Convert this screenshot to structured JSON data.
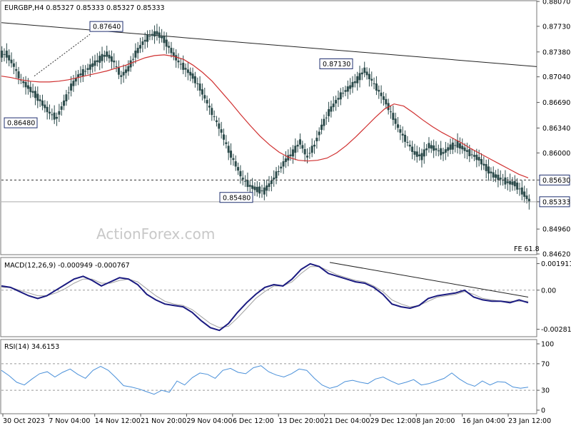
{
  "chart_data": [
    {
      "type": "candlestick",
      "header": "EURGBP,H4  0.85327 0.85333 0.85327 0.85333",
      "price_scale": {
        "ticks": [
          "0.88070",
          "0.87730",
          "0.87380",
          "0.87040",
          "0.86690",
          "0.86340",
          "0.86000",
          "0.85630",
          "0.85333",
          "0.84960",
          "0.84620"
        ],
        "ylim": [
          0.8462,
          0.8807
        ],
        "current_price": "0.85333",
        "highlighted_level": "0.85630"
      },
      "annotations": [
        {
          "text": "0.87640",
          "price": 0.8764
        },
        {
          "text": "0.86480",
          "price": 0.8648
        },
        {
          "text": "0.85480",
          "price": 0.8548
        },
        {
          "text": "0.87130",
          "price": 0.8713
        }
      ],
      "fe_label": "FE 61.8",
      "watermark": "ActionForex.com",
      "series": [
        {
          "name": "price",
          "values": [
            0.8735,
            0.872,
            0.87,
            0.869,
            0.868,
            0.8668,
            0.8655,
            0.8648,
            0.8668,
            0.869,
            0.8705,
            0.8712,
            0.872,
            0.8728,
            0.8735,
            0.8725,
            0.8705,
            0.8715,
            0.8735,
            0.875,
            0.876,
            0.8764,
            0.8755,
            0.874,
            0.8725,
            0.8715,
            0.8705,
            0.869,
            0.867,
            0.865,
            0.863,
            0.8605,
            0.8585,
            0.8565,
            0.8555,
            0.855,
            0.8548,
            0.856,
            0.8575,
            0.859,
            0.86,
            0.8615,
            0.8595,
            0.861,
            0.8635,
            0.8655,
            0.867,
            0.8682,
            0.869,
            0.87,
            0.8713,
            0.87,
            0.8685,
            0.867,
            0.865,
            0.863,
            0.8615,
            0.86,
            0.8595,
            0.861,
            0.8605,
            0.86,
            0.8608,
            0.8612,
            0.8605,
            0.8598,
            0.8592,
            0.858,
            0.857,
            0.8565,
            0.856,
            0.8558,
            0.8548,
            0.8535
          ]
        },
        {
          "name": "moving_average",
          "values": [
            0.8705,
            0.8703,
            0.87,
            0.8698,
            0.8697,
            0.8697,
            0.8698,
            0.87,
            0.8703,
            0.8706,
            0.8709,
            0.8712,
            0.8716,
            0.872,
            0.8725,
            0.873,
            0.8733,
            0.8734,
            0.8732,
            0.8728,
            0.872,
            0.871,
            0.8698,
            0.8683,
            0.8668,
            0.8652,
            0.8637,
            0.8623,
            0.8611,
            0.8601,
            0.8594,
            0.859,
            0.8589,
            0.859,
            0.8593,
            0.86,
            0.861,
            0.8622,
            0.8635,
            0.8648,
            0.866,
            0.8667,
            0.8664,
            0.8655,
            0.8645,
            0.8636,
            0.8628,
            0.8621,
            0.8614,
            0.8606,
            0.8599,
            0.8592,
            0.8585,
            0.8578,
            0.8571,
            0.8566
          ]
        }
      ],
      "trendline": {
        "start": 0.8778,
        "end": 0.8718
      }
    },
    {
      "type": "line",
      "header": "MACD(12,26,9) -0.000949 -0.000767",
      "ticks": [
        "0.001911",
        "0.00",
        "-0.002816"
      ],
      "ylim": [
        -0.0033,
        0.0023
      ],
      "series": [
        {
          "name": "macd",
          "values": [
            0.0003,
            0.0002,
            -0.0001,
            -0.0004,
            -0.0006,
            -0.0004,
            0.0,
            0.0004,
            0.0008,
            0.001,
            0.0007,
            0.0003,
            0.0006,
            0.0009,
            0.0008,
            0.0004,
            -0.0003,
            -0.0007,
            -0.001,
            -0.0011,
            -0.0012,
            -0.0016,
            -0.0022,
            -0.0027,
            -0.0029,
            -0.0024,
            -0.0016,
            -0.0009,
            -0.0003,
            0.0002,
            0.0004,
            0.0003,
            0.0008,
            0.0015,
            0.0019,
            0.0017,
            0.0012,
            0.001,
            0.0008,
            0.0006,
            0.0005,
            0.0002,
            -0.0003,
            -0.001,
            -0.0012,
            -0.0013,
            -0.0011,
            -0.0006,
            -0.0004,
            -0.0003,
            -0.0002,
            0.0,
            -0.0005,
            -0.0007,
            -0.0008,
            -0.0008,
            -0.0009,
            -0.0007,
            -0.0009
          ]
        },
        {
          "name": "signal",
          "values": [
            0.0002,
            0.0002,
            0.0,
            -0.0002,
            -0.0004,
            -0.0004,
            -0.0002,
            0.0001,
            0.0005,
            0.0008,
            0.0008,
            0.0005,
            0.0005,
            0.0007,
            0.0008,
            0.0006,
            0.0001,
            -0.0004,
            -0.0008,
            -0.001,
            -0.0011,
            -0.0014,
            -0.0019,
            -0.0024,
            -0.0027,
            -0.0026,
            -0.002,
            -0.0013,
            -0.0006,
            -0.0001,
            0.0003,
            0.0003,
            0.0006,
            0.0012,
            0.0017,
            0.0017,
            0.0014,
            0.0011,
            0.0009,
            0.0007,
            0.0006,
            0.0003,
            -0.0001,
            -0.0007,
            -0.001,
            -0.0012,
            -0.0011,
            -0.0008,
            -0.0005,
            -0.0004,
            -0.0003,
            -0.0001,
            -0.0003,
            -0.0006,
            -0.0007,
            -0.0008,
            -0.0008,
            -0.0008,
            -0.0008
          ]
        }
      ],
      "trendline": {
        "start": 0.002,
        "end": -0.0005
      }
    },
    {
      "type": "line",
      "header": "RSI(14) 34.6153",
      "ticks": [
        "100",
        "70",
        "30",
        "0"
      ],
      "ylim": [
        0,
        100
      ],
      "levels": [
        70,
        30
      ],
      "series": [
        {
          "name": "rsi",
          "values": [
            60,
            52,
            42,
            38,
            47,
            55,
            58,
            50,
            57,
            62,
            54,
            48,
            60,
            66,
            60,
            49,
            37,
            35,
            32,
            28,
            24,
            30,
            27,
            44,
            38,
            49,
            56,
            54,
            48,
            60,
            63,
            57,
            55,
            64,
            67,
            58,
            53,
            50,
            55,
            62,
            60,
            48,
            38,
            33,
            36,
            43,
            45,
            42,
            40,
            47,
            50,
            44,
            39,
            42,
            46,
            38,
            40,
            44,
            48,
            56,
            47,
            40,
            36,
            44,
            38,
            43,
            42,
            35,
            33,
            34.6
          ]
        }
      ]
    }
  ],
  "x_axis": {
    "labels": [
      "30 Oct 2023",
      "7 Nov 04:00",
      "14 Nov 12:00",
      "21 Nov 20:00",
      "29 Nov 04:00",
      "6 Dec 12:00",
      "13 Dec 20:00",
      "21 Dec 04:00",
      "29 Dec 12:00",
      "8 Jan 20:00",
      "16 Jan 04:00",
      "23 Jan 12:00"
    ]
  },
  "colors": {
    "candle": "#2b4a4a",
    "moving_average": "#d03030",
    "macd": "#1a1a80",
    "signal": "#a0a0a0",
    "rsi": "#4a90d9",
    "trendline": "#222222",
    "highlight_box": "#1f2f6f"
  }
}
